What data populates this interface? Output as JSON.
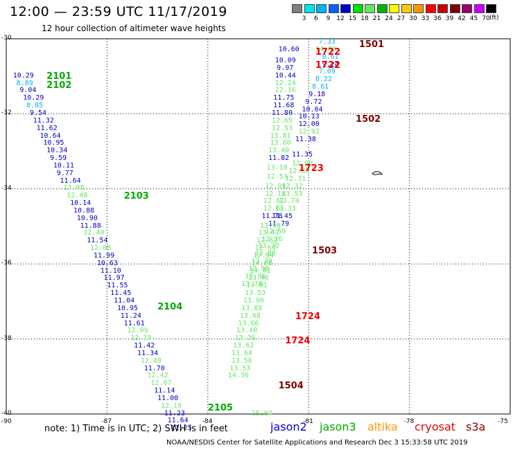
{
  "title": "12:00 — 23:59 UTC 11/17/2019",
  "subtitle": "12 hour collection of altimeter wave heights",
  "colorbar": {
    "colors": [
      "#808080",
      "#00e5e5",
      "#00b4f0",
      "#0064ff",
      "#0000c8",
      "#00e000",
      "#64e664",
      "#00b400",
      "#ffff00",
      "#ffc800",
      "#ff9600",
      "#ff0000",
      "#c80000",
      "#800000",
      "#9b006e",
      "#c800ff",
      "#000000"
    ],
    "labels": [
      "3",
      "6",
      "9",
      "12",
      "15",
      "18",
      "21",
      "24",
      "27",
      "30",
      "33",
      "36",
      "39",
      "42",
      "45",
      "70"
    ],
    "unit": "(ft)"
  },
  "lat_labels": [
    "-30",
    "-32",
    "-34",
    "-36",
    "-38",
    "-40"
  ],
  "lon_labels": [
    "-90",
    "-87",
    "-84",
    "-81",
    "-78",
    "-75"
  ],
  "note": "note:  1) Time is in UTC;  2) SWH is in feet",
  "satellites": [
    {
      "name": "jason2",
      "color": "#0000dd"
    },
    {
      "name": "jason3",
      "color": "#00aa00"
    },
    {
      "name": "altika",
      "color": "#ff9900"
    },
    {
      "name": "cryosat",
      "color": "#ee0000"
    },
    {
      "name": "s3a",
      "color": "#8b0000"
    }
  ],
  "footer": "NOAA/NESDIS Center for Satellite Applications and Research    Dec  3 15:33:58 UTC 2019",
  "passes": [
    {
      "label": "2101",
      "color": "#00aa00",
      "lat": -30.9,
      "lon": -88.8
    },
    {
      "label": "2102",
      "color": "#00aa00",
      "lat": -31.15,
      "lon": -88.8
    },
    {
      "label": "2103",
      "color": "#00aa00",
      "lat": -34.1,
      "lon": -86.5
    },
    {
      "label": "2104",
      "color": "#00aa00",
      "lat": -37.05,
      "lon": -85.5
    },
    {
      "label": "2105",
      "color": "#00aa00",
      "lat": -39.75,
      "lon": -84.0
    },
    {
      "label": "1501",
      "color": "#800000",
      "lat": -30.05,
      "lon": -79.5
    },
    {
      "label": "1502",
      "color": "#800000",
      "lat": -32.05,
      "lon": -79.6
    },
    {
      "label": "1503",
      "color": "#800000",
      "lat": -35.55,
      "lon": -80.9
    },
    {
      "label": "1504",
      "color": "#800000",
      "lat": -39.15,
      "lon": -81.9
    },
    {
      "label": "1722",
      "color": "#ee0000",
      "lat": -30.25,
      "lon": -80.8
    },
    {
      "label": "1722",
      "color": "#ee0000",
      "lat": -30.6,
      "lon": -80.8
    },
    {
      "label": "1723",
      "color": "#ee0000",
      "lat": -33.35,
      "lon": -81.3
    },
    {
      "label": "1724",
      "color": "#ee0000",
      "lat": -37.3,
      "lon": -81.4
    },
    {
      "label": "1724",
      "color": "#ee0000",
      "lat": -37.95,
      "lon": -81.7
    }
  ],
  "wave_heights": [
    {
      "v": "10.29",
      "c": "#0000c8",
      "lat": -30.9,
      "lon": -89.8
    },
    {
      "v": "8.89",
      "c": "#00b4f0",
      "lat": -31.1,
      "lon": -89.7
    },
    {
      "v": "9.04",
      "c": "#0000c8",
      "lat": -31.3,
      "lon": -89.6
    },
    {
      "v": "10.29",
      "c": "#0000c8",
      "lat": -31.5,
      "lon": -89.5
    },
    {
      "v": "8.85",
      "c": "#00b4f0",
      "lat": -31.7,
      "lon": -89.4
    },
    {
      "v": "9.54",
      "c": "#0000c8",
      "lat": -31.9,
      "lon": -89.3
    },
    {
      "v": "11.32",
      "c": "#0000c8",
      "lat": -32.1,
      "lon": -89.2
    },
    {
      "v": "11.62",
      "c": "#0000c8",
      "lat": -32.3,
      "lon": -89.1
    },
    {
      "v": "10.64",
      "c": "#0000c8",
      "lat": -32.5,
      "lon": -89.0
    },
    {
      "v": "10.95",
      "c": "#0000c8",
      "lat": -32.7,
      "lon": -88.9
    },
    {
      "v": "10.34",
      "c": "#0000c8",
      "lat": -32.9,
      "lon": -88.8
    },
    {
      "v": "9.59",
      "c": "#0000c8",
      "lat": -33.1,
      "lon": -88.7
    },
    {
      "v": "10.11",
      "c": "#0000c8",
      "lat": -33.3,
      "lon": -88.6
    },
    {
      "v": "9.77",
      "c": "#0000c8",
      "lat": -33.5,
      "lon": -88.5
    },
    {
      "v": "11.64",
      "c": "#0000c8",
      "lat": -33.7,
      "lon": -88.4
    },
    {
      "v": "13.08",
      "c": "#64e664",
      "lat": -33.9,
      "lon": -88.3
    },
    {
      "v": "12.48",
      "c": "#64e664",
      "lat": -34.1,
      "lon": -88.2
    },
    {
      "v": "10.14",
      "c": "#0000c8",
      "lat": -34.3,
      "lon": -88.1
    },
    {
      "v": "10.88",
      "c": "#0000c8",
      "lat": -34.5,
      "lon": -88.0
    },
    {
      "v": "10.90",
      "c": "#0000c8",
      "lat": -34.7,
      "lon": -87.9
    },
    {
      "v": "11.88",
      "c": "#0000c8",
      "lat": -34.9,
      "lon": -87.8
    },
    {
      "v": "12.40",
      "c": "#64e664",
      "lat": -35.1,
      "lon": -87.7
    },
    {
      "v": "11.54",
      "c": "#0000c8",
      "lat": -35.3,
      "lon": -87.6
    },
    {
      "v": "12.08",
      "c": "#64e664",
      "lat": -35.5,
      "lon": -87.5
    },
    {
      "v": "11.99",
      "c": "#0000c8",
      "lat": -35.7,
      "lon": -87.4
    },
    {
      "v": "10.63",
      "c": "#0000c8",
      "lat": -35.9,
      "lon": -87.3
    },
    {
      "v": "11.10",
      "c": "#0000c8",
      "lat": -36.1,
      "lon": -87.2
    },
    {
      "v": "11.97",
      "c": "#0000c8",
      "lat": -36.3,
      "lon": -87.1
    },
    {
      "v": "11.55",
      "c": "#0000c8",
      "lat": -36.5,
      "lon": -87.0
    },
    {
      "v": "11.45",
      "c": "#0000c8",
      "lat": -36.7,
      "lon": -86.9
    },
    {
      "v": "11.04",
      "c": "#0000c8",
      "lat": -36.9,
      "lon": -86.8
    },
    {
      "v": "10.95",
      "c": "#0000c8",
      "lat": -37.1,
      "lon": -86.7
    },
    {
      "v": "11.24",
      "c": "#0000c8",
      "lat": -37.3,
      "lon": -86.6
    },
    {
      "v": "11.61",
      "c": "#0000c8",
      "lat": -37.5,
      "lon": -86.5
    },
    {
      "v": "12.09",
      "c": "#64e664",
      "lat": -37.7,
      "lon": -86.4
    },
    {
      "v": "12.18",
      "c": "#64e664",
      "lat": -37.9,
      "lon": -86.3
    },
    {
      "v": "11.42",
      "c": "#0000c8",
      "lat": -38.1,
      "lon": -86.2
    },
    {
      "v": "11.34",
      "c": "#0000c8",
      "lat": -38.3,
      "lon": -86.1
    },
    {
      "v": "12.48",
      "c": "#64e664",
      "lat": -38.5,
      "lon": -86.0
    },
    {
      "v": "11.70",
      "c": "#0000c8",
      "lat": -38.7,
      "lon": -85.9
    },
    {
      "v": "12.42",
      "c": "#64e664",
      "lat": -38.9,
      "lon": -85.8
    },
    {
      "v": "12.67",
      "c": "#64e664",
      "lat": -39.1,
      "lon": -85.7
    },
    {
      "v": "11.14",
      "c": "#0000c8",
      "lat": -39.3,
      "lon": -85.6
    },
    {
      "v": "11.00",
      "c": "#0000c8",
      "lat": -39.5,
      "lon": -85.5
    },
    {
      "v": "12.10",
      "c": "#64e664",
      "lat": -39.7,
      "lon": -85.4
    },
    {
      "v": "11.23",
      "c": "#0000c8",
      "lat": -39.9,
      "lon": -85.3
    },
    {
      "v": "11.64",
      "c": "#0000c8",
      "lat": -40.1,
      "lon": -85.2
    },
    {
      "v": "11.25",
      "c": "#0000c8",
      "lat": -40.3,
      "lon": -85.1
    },
    {
      "v": "7.33",
      "c": "#00b4f0",
      "lat": -30.0,
      "lon": -80.7
    },
    {
      "v": "14.00",
      "c": "#64e664",
      "lat": -30.2,
      "lon": -80.8
    },
    {
      "v": "8.61",
      "c": "#00b4f0",
      "lat": -30.4,
      "lon": -80.6
    },
    {
      "v": "9.24",
      "c": "#0000c8",
      "lat": -30.6,
      "lon": -80.6
    },
    {
      "v": "7.09",
      "c": "#00b4f0",
      "lat": -30.8,
      "lon": -80.7
    },
    {
      "v": "8.22",
      "c": "#00b4f0",
      "lat": -31.0,
      "lon": -80.8
    },
    {
      "v": "8.61",
      "c": "#00b4f0",
      "lat": -31.2,
      "lon": -80.9
    },
    {
      "v": "9.18",
      "c": "#0000c8",
      "lat": -31.4,
      "lon": -81.0
    },
    {
      "v": "9.72",
      "c": "#0000c8",
      "lat": -31.6,
      "lon": -81.1
    },
    {
      "v": "10.04",
      "c": "#0000c8",
      "lat": -31.8,
      "lon": -81.2
    },
    {
      "v": "10.13",
      "c": "#0000c8",
      "lat": -32.0,
      "lon": -81.3
    },
    {
      "v": "12.00",
      "c": "#0000c8",
      "lat": -32.2,
      "lon": -81.3
    },
    {
      "v": "12.92",
      "c": "#64e664",
      "lat": -32.4,
      "lon": -81.3
    },
    {
      "v": "11.38",
      "c": "#0000c8",
      "lat": -32.6,
      "lon": -81.4
    },
    {
      "v": "11.35",
      "c": "#0000c8",
      "lat": -33.0,
      "lon": -81.5
    },
    {
      "v": "12.90",
      "c": "#64e664",
      "lat": -33.25,
      "lon": -81.5
    },
    {
      "v": "12.80",
      "c": "#64e664",
      "lat": -33.45,
      "lon": -81.6
    },
    {
      "v": "12.31",
      "c": "#64e664",
      "lat": -33.65,
      "lon": -81.7
    },
    {
      "v": "12.32",
      "c": "#64e664",
      "lat": -33.85,
      "lon": -81.8
    },
    {
      "v": "13.53",
      "c": "#64e664",
      "lat": -34.05,
      "lon": -81.8
    },
    {
      "v": "13.74",
      "c": "#64e664",
      "lat": -34.25,
      "lon": -81.9
    },
    {
      "v": "13.33",
      "c": "#64e664",
      "lat": -34.45,
      "lon": -82.0
    },
    {
      "v": "11.45",
      "c": "#0000c8",
      "lat": -34.65,
      "lon": -82.1
    },
    {
      "v": "11.79",
      "c": "#0000c8",
      "lat": -34.85,
      "lon": -82.2
    },
    {
      "v": "12.50",
      "c": "#64e664",
      "lat": -35.05,
      "lon": -82.3
    },
    {
      "v": "12.36",
      "c": "#64e664",
      "lat": -35.25,
      "lon": -82.4
    },
    {
      "v": "13.70",
      "c": "#64e664",
      "lat": -35.45,
      "lon": -82.5
    },
    {
      "v": "13.88",
      "c": "#64e664",
      "lat": -35.65,
      "lon": -82.6
    },
    {
      "v": "12.29",
      "c": "#64e664",
      "lat": -35.85,
      "lon": -82.7
    },
    {
      "v": "12.98",
      "c": "#64e664",
      "lat": -36.05,
      "lon": -82.8
    },
    {
      "v": "13.96",
      "c": "#64e664",
      "lat": -36.25,
      "lon": -82.9
    },
    {
      "v": "13.78",
      "c": "#64e664",
      "lat": -36.45,
      "lon": -83.0
    },
    {
      "v": "10.60",
      "c": "#0000c8",
      "lat": -30.2,
      "lon": -81.9
    },
    {
      "v": "10.09",
      "c": "#0000c8",
      "lat": -30.5,
      "lon": -82.0
    },
    {
      "v": "9.97",
      "c": "#0000c8",
      "lat": -30.7,
      "lon": -81.95
    },
    {
      "v": "10.44",
      "c": "#0000c8",
      "lat": -30.9,
      "lon": -82.0
    },
    {
      "v": "12.24",
      "c": "#64e664",
      "lat": -31.1,
      "lon": -82.0
    },
    {
      "v": "12.16",
      "c": "#64e664",
      "lat": -31.3,
      "lon": -82.0
    },
    {
      "v": "11.75",
      "c": "#0000c8",
      "lat": -31.5,
      "lon": -82.05
    },
    {
      "v": "11.68",
      "c": "#0000c8",
      "lat": -31.7,
      "lon": -82.05
    },
    {
      "v": "11.80",
      "c": "#0000c8",
      "lat": -31.9,
      "lon": -82.1
    },
    {
      "v": "12.65",
      "c": "#64e664",
      "lat": -32.1,
      "lon": -82.1
    },
    {
      "v": "12.53",
      "c": "#64e664",
      "lat": -32.3,
      "lon": -82.1
    },
    {
      "v": "13.81",
      "c": "#64e664",
      "lat": -32.5,
      "lon": -82.15
    },
    {
      "v": "13.60",
      "c": "#64e664",
      "lat": -32.7,
      "lon": -82.15
    },
    {
      "v": "13.40",
      "c": "#64e664",
      "lat": -32.9,
      "lon": -82.2
    },
    {
      "v": "11.82",
      "c": "#0000c8",
      "lat": -33.1,
      "lon": -82.2
    },
    {
      "v": "13.10",
      "c": "#64e664",
      "lat": -33.35,
      "lon": -82.25
    },
    {
      "v": "12.53",
      "c": "#64e664",
      "lat": -33.6,
      "lon": -82.25
    },
    {
      "v": "12.99",
      "c": "#64e664",
      "lat": -33.85,
      "lon": -82.3
    },
    {
      "v": "12.18",
      "c": "#64e664",
      "lat": -34.05,
      "lon": -82.3
    },
    {
      "v": "12.61",
      "c": "#64e664",
      "lat": -34.25,
      "lon": -82.35
    },
    {
      "v": "12.61",
      "c": "#64e664",
      "lat": -34.45,
      "lon": -82.35
    },
    {
      "v": "11.78",
      "c": "#0000c8",
      "lat": -34.65,
      "lon": -82.4
    },
    {
      "v": "13.50",
      "c": "#64e664",
      "lat": -34.9,
      "lon": -82.45
    },
    {
      "v": "13.42",
      "c": "#64e664",
      "lat": -35.1,
      "lon": -82.5
    },
    {
      "v": "12.62",
      "c": "#64e664",
      "lat": -35.3,
      "lon": -82.55
    },
    {
      "v": "12.64",
      "c": "#64e664",
      "lat": -35.5,
      "lon": -82.6
    },
    {
      "v": "12.94",
      "c": "#64e664",
      "lat": -35.7,
      "lon": -82.65
    },
    {
      "v": "14.08",
      "c": "#64e664",
      "lat": -35.9,
      "lon": -82.7
    },
    {
      "v": "14.41",
      "c": "#64e664",
      "lat": -36.1,
      "lon": -82.75
    },
    {
      "v": "13.46",
      "c": "#64e664",
      "lat": -36.3,
      "lon": -82.8
    },
    {
      "v": "13.01",
      "c": "#64e664",
      "lat": -36.5,
      "lon": -82.85
    },
    {
      "v": "13.53",
      "c": "#64e664",
      "lat": -36.7,
      "lon": -82.9
    },
    {
      "v": "13.90",
      "c": "#64e664",
      "lat": -36.9,
      "lon": -82.95
    },
    {
      "v": "13.88",
      "c": "#64e664",
      "lat": -37.1,
      "lon": -83.0
    },
    {
      "v": "13.68",
      "c": "#64e664",
      "lat": -37.3,
      "lon": -83.05
    },
    {
      "v": "13.66",
      "c": "#64e664",
      "lat": -37.5,
      "lon": -83.1
    },
    {
      "v": "13.48",
      "c": "#64e664",
      "lat": -37.7,
      "lon": -83.15
    },
    {
      "v": "13.36",
      "c": "#64e664",
      "lat": -37.9,
      "lon": -83.2
    },
    {
      "v": "13.62",
      "c": "#64e664",
      "lat": -38.1,
      "lon": -83.25
    },
    {
      "v": "13.64",
      "c": "#64e664",
      "lat": -38.3,
      "lon": -83.3
    },
    {
      "v": "13.56",
      "c": "#64e664",
      "lat": -38.5,
      "lon": -83.3
    },
    {
      "v": "13.53",
      "c": "#64e664",
      "lat": -38.7,
      "lon": -83.35
    },
    {
      "v": "14.36",
      "c": "#64e664",
      "lat": -38.9,
      "lon": -83.4
    },
    {
      "v": "15.04",
      "c": "#64e664",
      "lat": -39.9,
      "lon": -82.7
    }
  ]
}
